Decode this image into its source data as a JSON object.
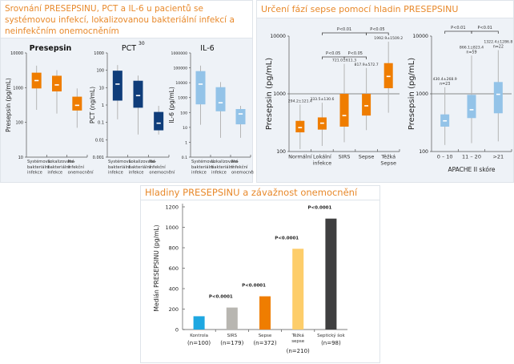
{
  "panels": {
    "left_title": "Srovnání PRESEPSINU, PCT a IL-6 u pacientů se systémovou infekcí, lokalizovanou bakteriální infekcí a neinfekčním onemocněním",
    "right_title": "Určení fází sepse pomocí hladin PRESEPSINU",
    "bottom_title": "Hladiny PRESEPSINU a závažnost onemocnění"
  },
  "colors": {
    "orange": "#ef7d00",
    "navy": "#0f3d7a",
    "lightblue": "#93c3e8",
    "title_orange": "#e8892b",
    "whisker": "#b5b5b5"
  },
  "chart_data": [
    {
      "id": "presepsin_small",
      "type": "boxplot",
      "title": "Presepsin",
      "ylabel": "Presepsin (pg/mL)",
      "yscale": "log",
      "ylim": [
        10,
        10000
      ],
      "yticks": [
        "10",
        "100",
        "1000",
        "10000"
      ],
      "categories": [
        "Systémová bakteriální infekce",
        "Lokalizovaná bakteriální infekce",
        "Ne-infekční onemocnění"
      ],
      "category_lines": [
        [
          "Systémová",
          "bakteriální",
          "infekce"
        ],
        [
          "Lokalizovaná",
          "bakteriální",
          "infekce"
        ],
        [
          "Ne-",
          "infekční",
          "onemocnění"
        ]
      ],
      "boxes": [
        {
          "min": 230,
          "q1": 950,
          "median": 1600,
          "q3": 2700,
          "max": 4300
        },
        {
          "min": 180,
          "q1": 780,
          "median": 1200,
          "q3": 2200,
          "max": 3200
        },
        {
          "min": 70,
          "q1": 220,
          "median": 310,
          "q3": 550,
          "max": 950
        }
      ],
      "color": "#ef7d00"
    },
    {
      "id": "pct",
      "type": "boxplot",
      "title": "PCT",
      "title_sup": "30",
      "ylabel": "PCT (ng/mL)",
      "yscale": "log",
      "ylim": [
        0.001,
        1000
      ],
      "yticks": [
        "0.001",
        "0.01",
        "0.1",
        "1",
        "10",
        "100",
        "1000"
      ],
      "categories": [
        "Systémová bakteriální infekce",
        "Lokalizovaná bakteriální infekce",
        "Ne-infekční onemocnění"
      ],
      "category_lines": [
        [
          "Systémová",
          "bakteriální",
          "infekce"
        ],
        [
          "Lokalizovaná",
          "bakteriální",
          "infekce"
        ],
        [
          "Ne-",
          "infekční",
          "onemocnění"
        ]
      ],
      "boxes": [
        {
          "min": 0.15,
          "q1": 1.8,
          "median": 16,
          "q3": 95,
          "max": 200
        },
        {
          "min": 0.02,
          "q1": 0.7,
          "median": 3.5,
          "q3": 25,
          "max": 50
        },
        {
          "min": 0.02,
          "q1": 0.035,
          "median": 0.09,
          "q3": 0.4,
          "max": 0.9
        }
      ],
      "color": "#0f3d7a"
    },
    {
      "id": "il6",
      "type": "boxplot",
      "title": "IL-6",
      "ylabel": "IL-6 (pg/mL)",
      "yscale": "log",
      "ylim": [
        0.1,
        1000000
      ],
      "yticks": [
        "0.1",
        "1",
        "10",
        "100",
        "1000",
        "10000",
        "100000",
        "1000000"
      ],
      "categories": [
        "Systémová bakteriální infekce",
        "Lokalizovaná bakteriální infekce",
        "Ne-infekční onemocnění"
      ],
      "category_lines": [
        [
          "Systémová",
          "bakteriální",
          "infekce"
        ],
        [
          "bakteriální",
          "infekce"
        ],
        [
          "Ne-",
          "infekční",
          "onemocnění"
        ]
      ],
      "category_lines_full": [
        [
          "Systémová",
          "bakteriální",
          "infekce"
        ],
        [
          "Lokalizovaná",
          "bakteriální",
          "infekce"
        ],
        [
          "Ne-",
          "infekční",
          "onemocnění"
        ]
      ],
      "boxes": [
        {
          "min": 15,
          "q1": 350,
          "median": 8000,
          "q3": 60000,
          "max": 140000
        },
        {
          "min": 2,
          "q1": 120,
          "median": 450,
          "q3": 5000,
          "max": 11000
        },
        {
          "min": 2,
          "q1": 16,
          "median": 80,
          "q3": 170,
          "max": 280
        }
      ],
      "color": "#93c3e8"
    },
    {
      "id": "sepsis_phases",
      "type": "boxplot",
      "ylabel": "Presepsin (pg/mL)",
      "yscale": "log",
      "ylim": [
        100,
        10000
      ],
      "yticks": [
        "100",
        "1000",
        "10000"
      ],
      "reference_line": 1000,
      "categories": [
        "Normální",
        "Lokální infekce",
        "SIRS",
        "Sepse",
        "Těžká Sepse"
      ],
      "category_lines": [
        [
          "Normální"
        ],
        [
          "Lokální",
          "infekce"
        ],
        [
          "SIRS"
        ],
        [
          "Sepse"
        ],
        [
          "Těžká",
          "Sepse"
        ]
      ],
      "annotations": [
        "294.2±121.4",
        "333.5±130.6",
        "721.0±611.3",
        "817.9±572.7",
        "1992.9±1509.2"
      ],
      "boxes": [
        {
          "min": 110,
          "q1": 215,
          "median": 260,
          "q3": 340,
          "max": 650
        },
        {
          "min": 125,
          "q1": 240,
          "median": 310,
          "q3": 390,
          "max": 700
        },
        {
          "min": 145,
          "q1": 270,
          "median": 420,
          "q3": 1000,
          "max": 3300
        },
        {
          "min": 235,
          "q1": 420,
          "median": 620,
          "q3": 1000,
          "max": 2800
        },
        {
          "min": 470,
          "q1": 1250,
          "median": 2000,
          "q3": 3400,
          "max": 8000
        }
      ],
      "significance": [
        {
          "label": "P<0.01",
          "from": 1,
          "to": 3,
          "level": "top"
        },
        {
          "label": "P<0.05",
          "from": 3,
          "to": 4,
          "level": "top"
        },
        {
          "label": "P<0.05",
          "from": 1,
          "to": 2,
          "level": "mid"
        },
        {
          "label": "P<0.05",
          "from": 2,
          "to": 3,
          "level": "mid"
        }
      ],
      "color": "#ef7d00"
    },
    {
      "id": "apache",
      "type": "boxplot",
      "ylabel": "Presepsin (pg/mL)",
      "xlabel": "APACHE II skóre",
      "yscale": "log",
      "ylim": [
        100,
        10000
      ],
      "yticks": [
        "100",
        "1000",
        "10000"
      ],
      "reference_line": 1000,
      "categories": [
        "0 – 10",
        "11 – 20",
        ">21"
      ],
      "annotations": [
        [
          "430.4±268.9",
          "n=23"
        ],
        [
          "866.1±823.4",
          "n=59"
        ],
        [
          "1322.4±1286.8",
          "n=22"
        ]
      ],
      "boxes": [
        {
          "min": 130,
          "q1": 270,
          "median": 340,
          "q3": 440,
          "max": 1300
        },
        {
          "min": 140,
          "q1": 380,
          "median": 530,
          "q3": 960,
          "max": 4600
        },
        {
          "min": 150,
          "q1": 460,
          "median": 980,
          "q3": 1600,
          "max": 5700
        }
      ],
      "significance": [
        {
          "label": "P<0.01",
          "from": 0,
          "to": 1
        },
        {
          "label": "P<0.01",
          "from": 1,
          "to": 2
        }
      ],
      "color": "#93c3e8"
    },
    {
      "id": "severity",
      "type": "bar",
      "ylabel": "Medián PRESEPSINU  (pg/mL)",
      "ylim": [
        0,
        1200
      ],
      "yticks": [
        "0",
        "200",
        "400",
        "600",
        "800",
        "1000",
        "1200"
      ],
      "categories": [
        "Kontrola",
        "SIRS",
        "Sepse",
        "Těžká sepse",
        "Septický šok"
      ],
      "category_lines": [
        [
          "Kontrola"
        ],
        [
          "SIRS"
        ],
        [
          "Sepse"
        ],
        [
          "Těžká",
          "sepse"
        ],
        [
          "Septický šok"
        ]
      ],
      "n_labels": [
        "(n=100)",
        "(n=179)",
        "(n=372)",
        "(n=210)",
        "(n=98)"
      ],
      "values": [
        130,
        215,
        325,
        790,
        1085
      ],
      "bar_colors": [
        "#1ea7e1",
        "#b8b6b1",
        "#ef7d00",
        "#fdcd6a",
        "#3f3f40"
      ],
      "p_labels": [
        "",
        "P<0.0001",
        "P<0.0001",
        "P<0.0001",
        "P<0.0001"
      ]
    }
  ]
}
